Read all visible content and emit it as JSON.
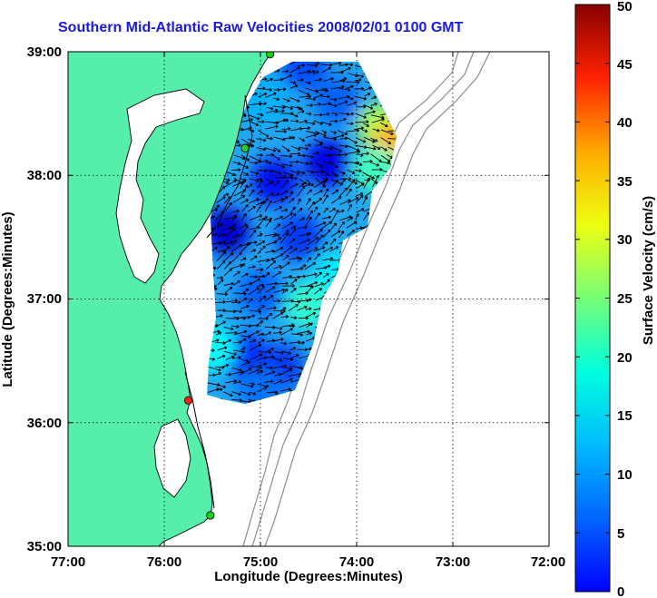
{
  "chart_data": {
    "type": "heatmap",
    "title": "Southern Mid-Atlantic Raw Velocities 2008/02/01 0100 GMT",
    "xlabel": "Longitude (Degrees:Minutes)",
    "ylabel": "Latitude (Degrees:Minutes)",
    "x_ticks": [
      "77:00",
      "76:00",
      "75:00",
      "74:00",
      "73:00",
      "72:00"
    ],
    "y_ticks": [
      "39:00",
      "38:00",
      "37:00",
      "36:00",
      "35:00"
    ],
    "xlim": [
      -77,
      -72
    ],
    "ylim": [
      35,
      39
    ],
    "grid": true,
    "colorbar": {
      "label": "Surface Velocity (cm/s)",
      "ticks": [
        "0",
        "5",
        "10",
        "15",
        "20",
        "25",
        "30",
        "35",
        "40",
        "45",
        "50"
      ],
      "range": [
        0,
        50
      ],
      "colormap": "jet"
    },
    "colors": {
      "land": "#55eeaa",
      "ocean": "#ffffff",
      "coast": "#000000",
      "bathymetry": "#8c8c8c",
      "title": "#1a1adc"
    },
    "sites": [
      {
        "lon": -74.9,
        "lat": 38.98,
        "color": "#22cc22"
      },
      {
        "lon": -75.16,
        "lat": 38.22,
        "color": "#22cc22"
      },
      {
        "lon": -75.75,
        "lat": 36.18,
        "color": "#ee2222"
      },
      {
        "lon": -75.52,
        "lat": 35.25,
        "color": "#22cc22"
      }
    ],
    "speed_field": [
      {
        "lon": -74.55,
        "lat": 38.88,
        "speed": 10
      },
      {
        "lon": -74.95,
        "lat": 38.6,
        "speed": 15
      },
      {
        "lon": -74.2,
        "lat": 38.6,
        "speed": 11
      },
      {
        "lon": -73.75,
        "lat": 38.4,
        "speed": 27
      },
      {
        "lon": -73.62,
        "lat": 38.25,
        "speed": 35
      },
      {
        "lon": -73.8,
        "lat": 38.05,
        "speed": 22
      },
      {
        "lon": -74.3,
        "lat": 38.1,
        "speed": 5
      },
      {
        "lon": -74.85,
        "lat": 37.95,
        "speed": 7
      },
      {
        "lon": -75.35,
        "lat": 37.55,
        "speed": 4
      },
      {
        "lon": -74.6,
        "lat": 37.5,
        "speed": 9
      },
      {
        "lon": -74.2,
        "lat": 37.2,
        "speed": 18
      },
      {
        "lon": -74.5,
        "lat": 36.95,
        "speed": 21
      },
      {
        "lon": -75.0,
        "lat": 37.05,
        "speed": 11
      },
      {
        "lon": -75.2,
        "lat": 36.55,
        "speed": 8
      },
      {
        "lon": -75.5,
        "lat": 36.6,
        "speed": 19
      },
      {
        "lon": -74.8,
        "lat": 36.45,
        "speed": 9
      },
      {
        "lon": -75.0,
        "lat": 36.25,
        "speed": 12
      }
    ]
  }
}
